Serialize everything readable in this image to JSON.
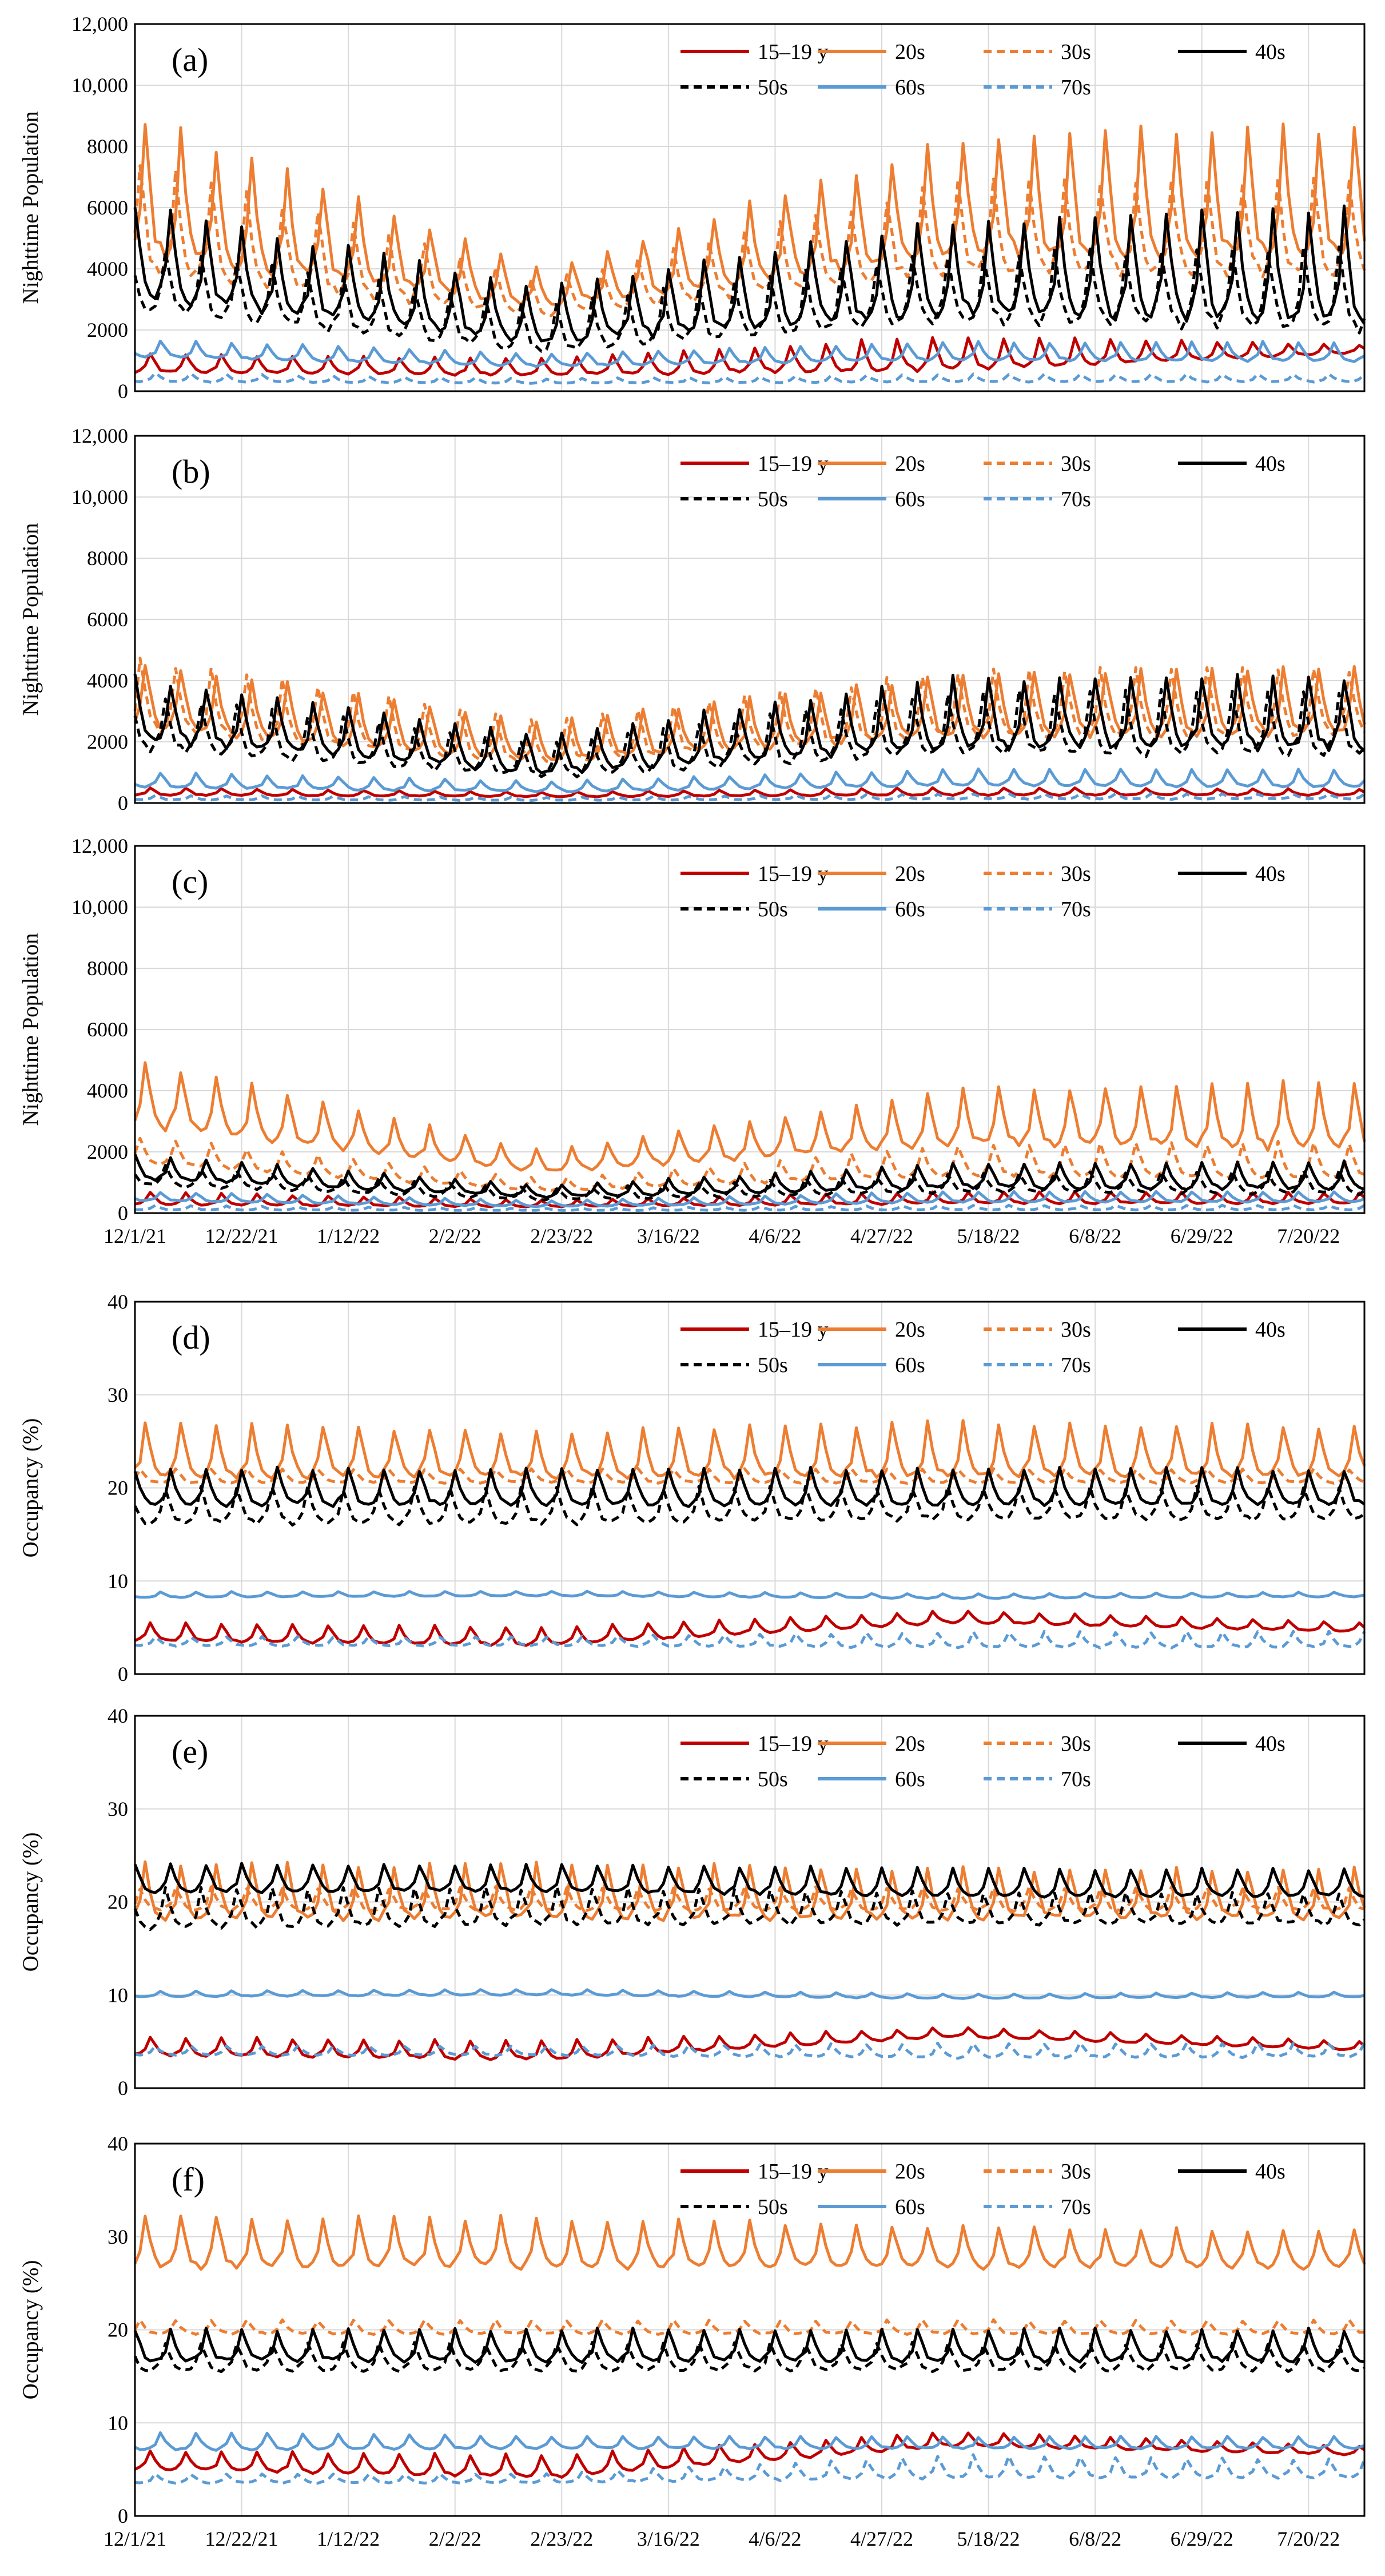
{
  "figure": {
    "x_tick_labels": [
      "12/1/21",
      "12/22/21",
      "1/12/22",
      "2/2/22",
      "2/23/22",
      "3/16/22",
      "4/6/22",
      "4/27/22",
      "5/18/22",
      "6/8/22",
      "6/29/22",
      "7/20/22"
    ]
  },
  "legend": [
    "15–19 y",
    "20s",
    "30s",
    "40s",
    "50s",
    "60s",
    "70s"
  ],
  "series_styles": [
    {
      "name": "15–19 y",
      "color": "#c00000",
      "dash": "solid"
    },
    {
      "name": "20s",
      "color": "#ed7d31",
      "dash": "solid"
    },
    {
      "name": "30s",
      "color": "#ed7d31",
      "dash": "dashed"
    },
    {
      "name": "40s",
      "color": "#000000",
      "dash": "solid"
    },
    {
      "name": "50s",
      "color": "#000000",
      "dash": "dashed"
    },
    {
      "name": "60s",
      "color": "#5b9bd5",
      "dash": "solid"
    },
    {
      "name": "70s",
      "color": "#5b9bd5",
      "dash": "dashed"
    }
  ],
  "chart_data": [
    {
      "panel": "(a)",
      "type": "line",
      "ylabel": "Nighttime Population",
      "ylim": [
        0,
        12000
      ],
      "y_ticks": [
        "0",
        "2000",
        "4000",
        "6000",
        "8000",
        "10,000",
        "12,000"
      ],
      "x_start": "12/1/21",
      "x_end": "7/31/22",
      "period_days": 7,
      "series": [
        {
          "name": "15–19 y",
          "period": 7,
          "base": [
            600,
            500,
            650,
            1250
          ],
          "peak": [
            1200,
            1050,
            1800,
            1500
          ]
        },
        {
          "name": "20s",
          "period": 7,
          "base": [
            4300,
            2700,
            4300,
            4200
          ],
          "peak": [
            9000,
            4000,
            8200,
            8700
          ]
        },
        {
          "name": "30s",
          "period": 7,
          "base": [
            3800,
            2400,
            3800,
            3700
          ],
          "peak": [
            7500,
            3600,
            6800,
            6900
          ]
        },
        {
          "name": "40s",
          "period": 7,
          "base": [
            3000,
            1500,
            2400,
            2200
          ],
          "peak": [
            6000,
            3400,
            5600,
            5900
          ]
        },
        {
          "name": "50s",
          "period": 7,
          "base": [
            2600,
            1200,
            2200,
            1900
          ],
          "peak": [
            4800,
            2800,
            4500,
            4700
          ]
        },
        {
          "name": "60s",
          "period": 7,
          "base": [
            1100,
            800,
            1000,
            950
          ],
          "peak": [
            1700,
            1200,
            1600,
            1600
          ]
        },
        {
          "name": "70s",
          "period": 7,
          "base": [
            300,
            250,
            300,
            300
          ],
          "peak": [
            600,
            400,
            550,
            550
          ]
        }
      ]
    },
    {
      "panel": "(b)",
      "type": "line",
      "ylabel": "Nighttime Population",
      "ylim": [
        0,
        12000
      ],
      "y_ticks": [
        "0",
        "2000",
        "4000",
        "6000",
        "8000",
        "10,000",
        "12,000"
      ],
      "x_start": "12/1/21",
      "x_end": "7/31/22",
      "period_days": 7,
      "series": [
        {
          "name": "15–19 y",
          "period": 7,
          "base": [
            250,
            200,
            250,
            250
          ],
          "peak": [
            500,
            350,
            500,
            450
          ]
        },
        {
          "name": "20s",
          "period": 7,
          "base": [
            2400,
            1300,
            2100,
            2200
          ],
          "peak": [
            4600,
            2600,
            4200,
            4400
          ]
        },
        {
          "name": "30s",
          "period": 7,
          "base": [
            2300,
            1250,
            2100,
            2100
          ],
          "peak": [
            4700,
            2600,
            4300,
            4400
          ]
        },
        {
          "name": "40s",
          "period": 7,
          "base": [
            2000,
            900,
            1700,
            1700
          ],
          "peak": [
            4100,
            2200,
            4100,
            4100
          ]
        },
        {
          "name": "50s",
          "period": 7,
          "base": [
            1700,
            800,
            1500,
            1500
          ],
          "peak": [
            3600,
            1900,
            3600,
            3600
          ]
        },
        {
          "name": "60s",
          "period": 7,
          "base": [
            500,
            350,
            550,
            500
          ],
          "peak": [
            1000,
            700,
            1100,
            1100
          ]
        },
        {
          "name": "70s",
          "period": 7,
          "base": [
            100,
            80,
            120,
            120
          ],
          "peak": [
            250,
            180,
            300,
            300
          ]
        }
      ]
    },
    {
      "panel": "(c)",
      "type": "line",
      "ylabel": "Nighttime Population",
      "ylim": [
        0,
        12000
      ],
      "y_ticks": [
        "0",
        "2000",
        "4000",
        "6000",
        "8000",
        "10,000",
        "12,000"
      ],
      "x_start": "12/1/21",
      "x_end": "7/31/22",
      "period_days": 7,
      "series": [
        {
          "name": "15–19 y",
          "period": 7,
          "base": [
            250,
            200,
            300,
            300
          ],
          "peak": [
            700,
            400,
            700,
            650
          ]
        },
        {
          "name": "20s",
          "period": 7,
          "base": [
            2800,
            1300,
            2200,
            2000
          ],
          "peak": [
            5000,
            2000,
            4000,
            4300
          ]
        },
        {
          "name": "30s",
          "period": 7,
          "base": [
            1600,
            700,
            1200,
            1100
          ],
          "peak": [
            2500,
            1100,
            2200,
            2300
          ]
        },
        {
          "name": "40s",
          "period": 7,
          "base": [
            1100,
            500,
            800,
            750
          ],
          "peak": [
            1900,
            900,
            1600,
            1700
          ]
        },
        {
          "name": "50s",
          "period": 7,
          "base": [
            900,
            400,
            650,
            600
          ],
          "peak": [
            1600,
            800,
            1300,
            1400
          ]
        },
        {
          "name": "60s",
          "period": 7,
          "base": [
            400,
            200,
            350,
            350
          ],
          "peak": [
            700,
            400,
            700,
            700
          ]
        },
        {
          "name": "70s",
          "period": 7,
          "base": [
            100,
            80,
            100,
            100
          ],
          "peak": [
            250,
            150,
            250,
            250
          ]
        }
      ]
    },
    {
      "panel": "(d)",
      "type": "line",
      "ylabel": "Occupancy (%)",
      "ylim": [
        0,
        40
      ],
      "y_ticks": [
        "0",
        "10",
        "20",
        "30",
        "40"
      ],
      "x_start": "12/1/21",
      "x_end": "7/31/22",
      "period_days": 7,
      "series": [
        {
          "name": "15–19 y",
          "period": 7,
          "base": [
            3.5,
            3,
            5.5,
            4.5
          ],
          "peak": [
            5.5,
            5,
            6.8,
            5.5
          ]
        },
        {
          "name": "20s",
          "period": 7,
          "base": [
            21,
            21,
            21,
            21
          ],
          "peak": [
            27,
            26,
            27,
            26.5
          ]
        },
        {
          "name": "30s",
          "period": 7,
          "base": [
            20.5,
            20.5,
            20.5,
            20.5
          ],
          "peak": [
            22,
            22,
            22,
            22
          ]
        },
        {
          "name": "40s",
          "period": 7,
          "base": [
            18,
            18,
            18,
            18
          ],
          "peak": [
            22,
            22,
            22,
            22
          ]
        },
        {
          "name": "50s",
          "period": 7,
          "base": [
            16,
            16,
            16.5,
            16.5
          ],
          "peak": [
            20,
            20,
            20,
            20
          ]
        },
        {
          "name": "60s",
          "period": 7,
          "base": [
            8.2,
            8.4,
            8.1,
            8.3
          ],
          "peak": [
            8.8,
            8.9,
            8.6,
            8.8
          ]
        },
        {
          "name": "70s",
          "period": 7,
          "base": [
            3,
            3,
            2.8,
            2.8
          ],
          "peak": [
            4,
            4,
            4.5,
            4.5
          ]
        }
      ]
    },
    {
      "panel": "(e)",
      "type": "line",
      "ylabel": "Occupancy (%)",
      "ylim": [
        0,
        40
      ],
      "y_ticks": [
        "0",
        "10",
        "20",
        "30",
        "40"
      ],
      "x_start": "12/1/21",
      "x_end": "7/31/22",
      "period_days": 7,
      "series": [
        {
          "name": "15–19 y",
          "period": 7,
          "base": [
            3.5,
            3,
            5.5,
            4
          ],
          "peak": [
            5.5,
            5,
            6.5,
            5
          ]
        },
        {
          "name": "20s",
          "period": 7,
          "base": [
            18,
            18,
            18,
            18
          ],
          "peak": [
            24,
            24,
            23.5,
            23.5
          ]
        },
        {
          "name": "30s",
          "period": 7,
          "base": [
            19,
            19,
            19,
            19
          ],
          "peak": [
            21.5,
            21.5,
            21.5,
            21.5
          ]
        },
        {
          "name": "40s",
          "period": 7,
          "base": [
            21,
            21,
            20.5,
            20.5
          ],
          "peak": [
            24,
            24,
            23.5,
            23.5
          ]
        },
        {
          "name": "50s",
          "period": 7,
          "base": [
            17,
            17.5,
            17.5,
            17.5
          ],
          "peak": [
            21.5,
            21.5,
            21,
            21
          ]
        },
        {
          "name": "60s",
          "period": 7,
          "base": [
            9.8,
            10,
            9.6,
            9.8
          ],
          "peak": [
            10.4,
            10.6,
            10.1,
            10.3
          ]
        },
        {
          "name": "70s",
          "period": 7,
          "base": [
            3.5,
            3.5,
            3.2,
            3.3
          ],
          "peak": [
            4.5,
            4.5,
            4.8,
            4.8
          ]
        }
      ]
    },
    {
      "panel": "(f)",
      "type": "line",
      "ylabel": "Occupancy (%)",
      "ylim": [
        0,
        40
      ],
      "y_ticks": [
        "0",
        "10",
        "20",
        "30",
        "40"
      ],
      "x_start": "12/1/21",
      "x_end": "7/31/22",
      "period_days": 7,
      "series": [
        {
          "name": "15–19 y",
          "period": 7,
          "base": [
            5,
            4,
            7.5,
            6.5
          ],
          "peak": [
            7,
            6.5,
            9,
            7.5
          ]
        },
        {
          "name": "20s",
          "period": 7,
          "base": [
            26.5,
            26.5,
            26.5,
            26.5
          ],
          "peak": [
            32,
            32,
            31,
            30.5
          ]
        },
        {
          "name": "30s",
          "period": 7,
          "base": [
            19.5,
            19.5,
            19.5,
            19.5
          ],
          "peak": [
            21,
            21,
            21,
            21
          ]
        },
        {
          "name": "40s",
          "period": 7,
          "base": [
            16.5,
            16.5,
            16.5,
            16.5
          ],
          "peak": [
            20,
            20,
            20,
            20
          ]
        },
        {
          "name": "50s",
          "period": 7,
          "base": [
            15.5,
            15.5,
            15.5,
            15.5
          ],
          "peak": [
            18.5,
            18.5,
            18.5,
            18.5
          ]
        },
        {
          "name": "60s",
          "period": 7,
          "base": [
            7,
            7.2,
            7.2,
            7.2
          ],
          "peak": [
            9,
            8.5,
            8.5,
            8.5
          ]
        },
        {
          "name": "70s",
          "period": 7,
          "base": [
            3.5,
            3.5,
            4,
            4
          ],
          "peak": [
            4.5,
            4.5,
            6.5,
            6
          ]
        }
      ]
    }
  ]
}
